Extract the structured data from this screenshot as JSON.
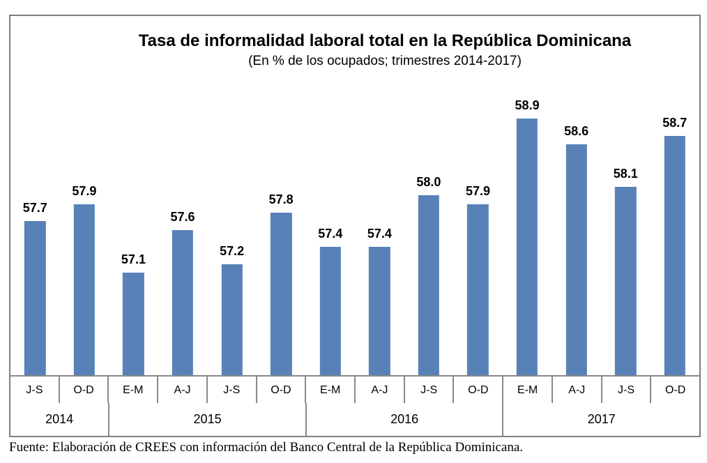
{
  "chart_data": {
    "type": "bar",
    "title": "Tasa de informalidad laboral total en la República Dominicana",
    "subtitle": "(En % de los ocupados; trimestres 2014-2017)",
    "source": "Fuente: Elaboración de CREES con información del Banco Central de la República Dominicana.",
    "categories": [
      "J-S",
      "O-D",
      "E-M",
      "A-J",
      "J-S",
      "O-D",
      "E-M",
      "A-J",
      "J-S",
      "O-D",
      "E-M",
      "A-J",
      "J-S",
      "O-D"
    ],
    "year_groups": [
      {
        "label": "2014",
        "span": 2
      },
      {
        "label": "2015",
        "span": 4
      },
      {
        "label": "2016",
        "span": 4
      },
      {
        "label": "2017",
        "span": 4
      }
    ],
    "values": [
      57.7,
      57.9,
      57.1,
      57.6,
      57.2,
      57.8,
      57.4,
      57.4,
      58.0,
      57.9,
      58.9,
      58.6,
      58.1,
      58.7
    ],
    "value_labels": [
      "57.7",
      "57.9",
      "57.1",
      "57.6",
      "57.2",
      "57.8",
      "57.4",
      "57.4",
      "58.0",
      "57.9",
      "58.9",
      "58.6",
      "58.1",
      "58.7"
    ],
    "ylabel": "",
    "xlabel": "",
    "ylim": [
      55.9,
      60.1
    ],
    "grid": false,
    "legend": false,
    "bar_color": "#5881B7",
    "frame_color": "#7f7f7f",
    "line_color": "#898989"
  }
}
